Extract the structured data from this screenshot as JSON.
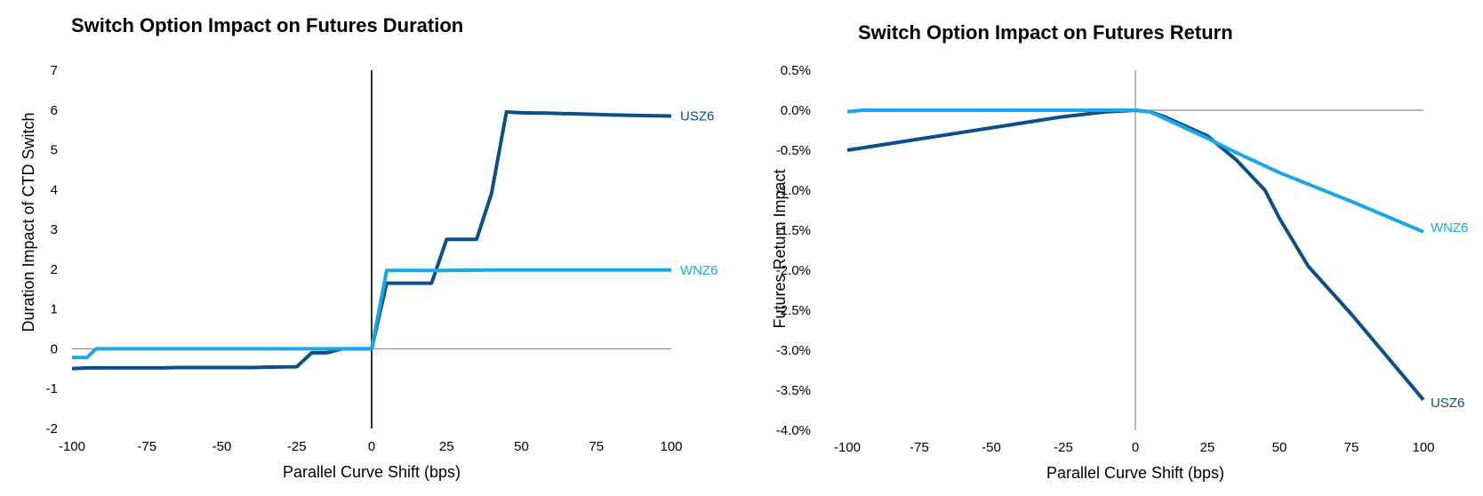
{
  "chart_data": [
    {
      "type": "line",
      "title": "Switch Option Impact on Futures Duration",
      "xlabel": "Parallel Curve Shift (bps)",
      "ylabel": "Duration Impact of CTD Switch",
      "xlim": [
        -100,
        100
      ],
      "ylim": [
        -2,
        7
      ],
      "xticks": [
        "-100",
        "-75",
        "-50",
        "-25",
        "0",
        "25",
        "50",
        "75",
        "100"
      ],
      "yticks": [
        "-2",
        "-1",
        "0",
        "1",
        "2",
        "3",
        "4",
        "5",
        "6",
        "7"
      ],
      "series": [
        {
          "name": "USZ6",
          "color": "#0b4f8a",
          "x": [
            -100,
            -95,
            -90,
            -70,
            -65,
            -50,
            -40,
            -35,
            -25,
            -20,
            -15,
            -10,
            -5,
            0,
            5,
            10,
            15,
            20,
            25,
            30,
            35,
            40,
            45,
            50,
            60,
            70,
            80,
            90,
            100
          ],
          "y": [
            -0.5,
            -0.48,
            -0.48,
            -0.48,
            -0.47,
            -0.47,
            -0.47,
            -0.46,
            -0.45,
            -0.1,
            -0.1,
            0,
            0,
            0,
            1.65,
            1.65,
            1.65,
            1.65,
            2.75,
            2.75,
            2.75,
            3.9,
            5.95,
            5.93,
            5.92,
            5.9,
            5.88,
            5.86,
            5.85
          ]
        },
        {
          "name": "WNZ6",
          "color": "#1aa7e8",
          "x": [
            -100,
            -95,
            -92,
            -50,
            0,
            5,
            25,
            40,
            60,
            80,
            100
          ],
          "y": [
            -0.22,
            -0.22,
            0,
            0,
            0,
            1.97,
            1.97,
            1.98,
            1.98,
            1.98,
            1.98
          ]
        }
      ]
    },
    {
      "type": "line",
      "title": "Switch Option Impact on Futures Return",
      "xlabel": "Parallel Curve Shift (bps)",
      "ylabel": "Futures Return Impact",
      "xlim": [
        -100,
        100
      ],
      "ylim": [
        -4.0,
        0.5
      ],
      "xticks": [
        "-100",
        "-75",
        "-50",
        "-25",
        "0",
        "25",
        "50",
        "75",
        "100"
      ],
      "yticks": [
        "-4.0%",
        "-3.5%",
        "-3.0%",
        "-2.5%",
        "-2.0%",
        "-1.5%",
        "-1.0%",
        "-0.5%",
        "0.0%",
        "0.5%"
      ],
      "series": [
        {
          "name": "USZ6",
          "color": "#0b4f8a",
          "x": [
            -100,
            -75,
            -50,
            -25,
            -10,
            0,
            5,
            10,
            25,
            35,
            45,
            50,
            60,
            75,
            100
          ],
          "y": [
            -0.5,
            -0.36,
            -0.22,
            -0.08,
            -0.02,
            0,
            -0.02,
            -0.08,
            -0.32,
            -0.62,
            -1.0,
            -1.35,
            -1.95,
            -2.55,
            -3.62
          ]
        },
        {
          "name": "WNZ6",
          "color": "#1aa7e8",
          "x": [
            -100,
            -95,
            -90,
            -50,
            0,
            5,
            10,
            25,
            35,
            50,
            75,
            100
          ],
          "y": [
            -0.02,
            0,
            0,
            0,
            0,
            -0.02,
            -0.1,
            -0.35,
            -0.53,
            -0.78,
            -1.14,
            -1.52
          ]
        }
      ]
    }
  ]
}
